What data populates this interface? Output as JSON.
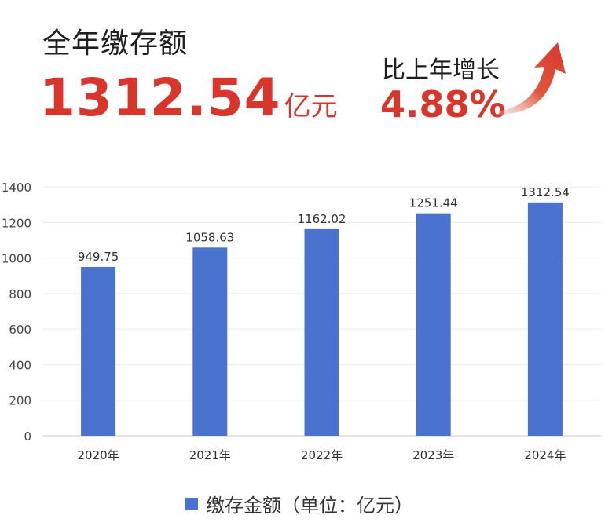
{
  "header": {
    "title": "全年缴存额",
    "amount": "1312.54",
    "amount_unit": "亿元",
    "growth_label": "比上年增长",
    "growth_value": "4.88%"
  },
  "colors": {
    "accent": "#d9352a",
    "bar": "#4a73cf"
  },
  "legend": {
    "label": "缴存金额（单位：亿元）"
  },
  "chart_data": {
    "type": "bar",
    "categories": [
      "2020年",
      "2021年",
      "2022年",
      "2023年",
      "2024年"
    ],
    "series": [
      {
        "name": "缴存金额（单位：亿元）",
        "values": [
          949.75,
          1058.63,
          1162.02,
          1251.44,
          1312.54
        ]
      }
    ],
    "data_labels": [
      "949.75",
      "1058.63",
      "1162.02",
      "1251.44",
      "1312.54"
    ],
    "ylim": [
      0,
      1400
    ],
    "yticks": [
      0,
      200,
      400,
      600,
      800,
      1000,
      1200,
      1400
    ],
    "grid": true,
    "legend_position": "bottom"
  }
}
